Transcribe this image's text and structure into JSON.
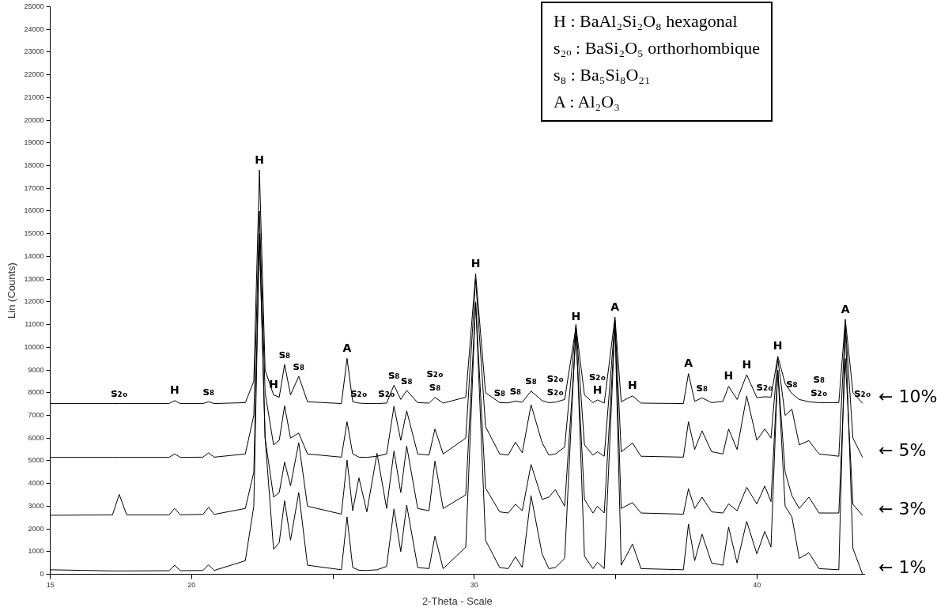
{
  "chart_data": {
    "type": "line",
    "xlabel": "2-Theta - Scale",
    "ylabel": "Lin (Counts)",
    "xlim": [
      15,
      43.8
    ],
    "xticks": [
      15,
      20,
      {
        "value": 25,
        "label": null
      },
      30,
      {
        "value": 35,
        "label": null
      },
      40
    ],
    "ylim": [
      0,
      25000
    ],
    "yticks": [
      0,
      1000,
      2000,
      3000,
      4000,
      5000,
      6000,
      7000,
      8000,
      9000,
      10000,
      11000,
      12000,
      13000,
      14000,
      15000,
      16000,
      17000,
      18000,
      19000,
      20000,
      21000,
      22000,
      23000,
      24000,
      25000
    ],
    "grid": false,
    "legend": false,
    "marker": "none",
    "line_style": "solid",
    "x": [
      15,
      17.2,
      17.44,
      17.7,
      19.2,
      19.4,
      19.6,
      20.4,
      20.6,
      20.8,
      21.9,
      22.2,
      22.4,
      22.6,
      22.9,
      23.1,
      23.29,
      23.5,
      23.79,
      24.1,
      25.3,
      25.5,
      25.7,
      25.92,
      26.2,
      26.56,
      26.9,
      27.16,
      27.4,
      27.61,
      28.0,
      28.4,
      28.61,
      28.9,
      29.7,
      30.05,
      30.4,
      30.9,
      31.2,
      31.46,
      31.7,
      32.01,
      32.4,
      32.64,
      32.87,
      33.2,
      33.6,
      33.9,
      34.2,
      34.36,
      34.6,
      34.98,
      35.2,
      35.6,
      35.9,
      37.4,
      37.58,
      37.8,
      38.06,
      38.4,
      38.8,
      39.0,
      39.3,
      39.64,
      40.0,
      40.28,
      40.5,
      40.74,
      41.0,
      41.24,
      41.5,
      41.84,
      42.2,
      42.9,
      43.13,
      43.4,
      43.74
    ],
    "series": [
      {
        "name": "← 10%",
        "color": "#000000",
        "values": [
          7520,
          7520,
          7520,
          7520,
          7520,
          7650,
          7520,
          7520,
          7600,
          7520,
          7560,
          8500,
          17800,
          9000,
          7900,
          7800,
          9240,
          7900,
          8720,
          7600,
          7520,
          9510,
          7600,
          7540,
          7520,
          7520,
          7540,
          8330,
          7700,
          8100,
          7560,
          7540,
          7790,
          7540,
          7800,
          13230,
          8000,
          7560,
          7550,
          7630,
          7580,
          8070,
          7650,
          7560,
          7580,
          7700,
          10910,
          7900,
          7560,
          7680,
          7540,
          11330,
          7600,
          7860,
          7540,
          7520,
          8840,
          7620,
          7770,
          7560,
          7620,
          8280,
          7700,
          8790,
          7780,
          7820,
          7800,
          9600,
          8400,
          7960,
          7700,
          7600,
          7560,
          7560,
          11230,
          8000,
          7530
        ]
      },
      {
        "name": "← 5%",
        "color": "#000000",
        "values": [
          5150,
          5150,
          5150,
          5150,
          5150,
          5300,
          5150,
          5160,
          5350,
          5160,
          5300,
          7000,
          16000,
          8000,
          5700,
          5900,
          7420,
          6000,
          6220,
          5300,
          5160,
          6720,
          5300,
          5160,
          5150,
          5200,
          5300,
          7400,
          5900,
          7200,
          5300,
          5250,
          6400,
          5300,
          6000,
          13000,
          6500,
          5300,
          5250,
          5820,
          5350,
          7470,
          5800,
          5250,
          5300,
          5600,
          11000,
          5700,
          5250,
          5400,
          5200,
          11200,
          5400,
          5780,
          5200,
          5160,
          6720,
          5500,
          6320,
          5400,
          5300,
          6400,
          5500,
          7850,
          5900,
          6400,
          6000,
          9500,
          7000,
          7270,
          5700,
          5890,
          5300,
          5200,
          11000,
          6000,
          5150
        ]
      },
      {
        "name": "← 3%",
        "color": "#000000",
        "values": [
          2600,
          2620,
          3520,
          2620,
          2620,
          2900,
          2620,
          2640,
          2950,
          2640,
          2900,
          4500,
          15000,
          6000,
          3400,
          3600,
          4940,
          3900,
          5800,
          3000,
          2650,
          5030,
          2800,
          4250,
          2750,
          5330,
          2900,
          5430,
          3600,
          5650,
          2900,
          2800,
          4990,
          2900,
          3500,
          12000,
          3800,
          2750,
          2700,
          3090,
          2800,
          4840,
          3300,
          3400,
          3730,
          3000,
          10500,
          3300,
          2700,
          3000,
          2700,
          11000,
          2900,
          3160,
          2700,
          2650,
          3770,
          2900,
          3400,
          2750,
          2700,
          3100,
          2800,
          3830,
          3100,
          3890,
          3200,
          9000,
          4500,
          3460,
          2900,
          3400,
          2700,
          2700,
          9500,
          3080,
          2600
        ]
      },
      {
        "name": "← 1%",
        "color": "#000000",
        "values": [
          200,
          150,
          150,
          150,
          160,
          400,
          160,
          170,
          420,
          170,
          600,
          3000,
          15000,
          6000,
          1100,
          1400,
          3240,
          1500,
          3600,
          400,
          200,
          2530,
          300,
          180,
          170,
          200,
          350,
          2880,
          1000,
          3050,
          300,
          250,
          1680,
          250,
          1200,
          12000,
          1500,
          300,
          250,
          770,
          300,
          3470,
          900,
          250,
          300,
          700,
          11000,
          800,
          250,
          530,
          250,
          11000,
          400,
          1330,
          250,
          200,
          2210,
          600,
          1770,
          500,
          400,
          2080,
          500,
          2330,
          900,
          1890,
          1200,
          9000,
          3000,
          2530,
          700,
          950,
          250,
          200,
          11000,
          1140,
          0
        ]
      }
    ],
    "annotations": [
      "H : BaAl₂Si₂O₈ hexagonal",
      "s₂ₒ : BaSi₂O₅ orthorhombique",
      "s₈ : Ba₅Si₈O₂₁",
      "A : Al₂O₃",
      {
        "text": "s₂ₒ",
        "x": 17.44,
        "y": 7520
      },
      {
        "text": "H",
        "x": 19.4,
        "y": 7650
      },
      {
        "text": "s₈",
        "x": 20.6,
        "y": 7600
      },
      {
        "text": "H",
        "x": 22.4,
        "y": 17800
      },
      {
        "text": "H",
        "x": 22.9,
        "y": 7900
      },
      {
        "text": "s₈",
        "x": 23.29,
        "y": 9240
      },
      {
        "text": "s₈",
        "x": 23.79,
        "y": 8720
      },
      {
        "text": "A",
        "x": 25.5,
        "y": 9510
      },
      {
        "text": "s₂ₒ",
        "x": 25.92,
        "y": 7540
      },
      {
        "text": "s₂ₒ",
        "x": 26.9,
        "y": 7540
      },
      {
        "text": "s₈",
        "x": 27.16,
        "y": 8330
      },
      {
        "text": "s₈",
        "x": 27.61,
        "y": 8100
      },
      {
        "text": "s₈",
        "x": 28.61,
        "y": 7790
      },
      {
        "text": "s₂ₒ",
        "x": 28.61,
        "y": 7790
      },
      {
        "text": "H",
        "x": 30.05,
        "y": 13230
      },
      {
        "text": "s₈",
        "x": 30.9,
        "y": 7560
      },
      {
        "text": "s₈",
        "x": 31.46,
        "y": 7630
      },
      {
        "text": "s₈",
        "x": 32.01,
        "y": 8070
      },
      {
        "text": "s₂ₒ",
        "x": 32.87,
        "y": 7580
      },
      {
        "text": "s₂ₒ",
        "x": 32.87,
        "y": 7580
      },
      {
        "text": "H",
        "x": 33.6,
        "y": 10910
      },
      {
        "text": "H",
        "x": 34.36,
        "y": 7680
      },
      {
        "text": "s₂ₒ",
        "x": 34.36,
        "y": 7680
      },
      {
        "text": "A",
        "x": 34.98,
        "y": 11330
      },
      {
        "text": "H",
        "x": 35.6,
        "y": 7860
      },
      {
        "text": "A",
        "x": 37.58,
        "y": 8840
      },
      {
        "text": "s₈",
        "x": 38.06,
        "y": 7770
      },
      {
        "text": "H",
        "x": 39.0,
        "y": 8280
      },
      {
        "text": "H",
        "x": 39.64,
        "y": 8790
      },
      {
        "text": "s₂ₒ",
        "x": 40.28,
        "y": 7820
      },
      {
        "text": "H",
        "x": 40.74,
        "y": 9600
      },
      {
        "text": "s₈",
        "x": 41.24,
        "y": 7960
      },
      {
        "text": "s₂ₒ",
        "x": 42.2,
        "y": 7560
      },
      {
        "text": "s₈",
        "x": 42.2,
        "y": 7560
      },
      {
        "text": "A",
        "x": 43.13,
        "y": 11230
      },
      {
        "text": "s₂ₒ",
        "x": 43.74,
        "y": 7530
      }
    ]
  }
}
